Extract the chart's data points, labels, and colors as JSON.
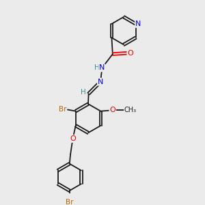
{
  "background_color": "#ebebeb",
  "bond_color": "#1a1a1a",
  "atom_colors": {
    "N": "#0000ee",
    "O": "#ee0000",
    "Br": "#bb6600",
    "C": "#1a1a1a",
    "H": "#3a9090"
  },
  "figsize": [
    3.0,
    3.0
  ],
  "dpi": 100
}
